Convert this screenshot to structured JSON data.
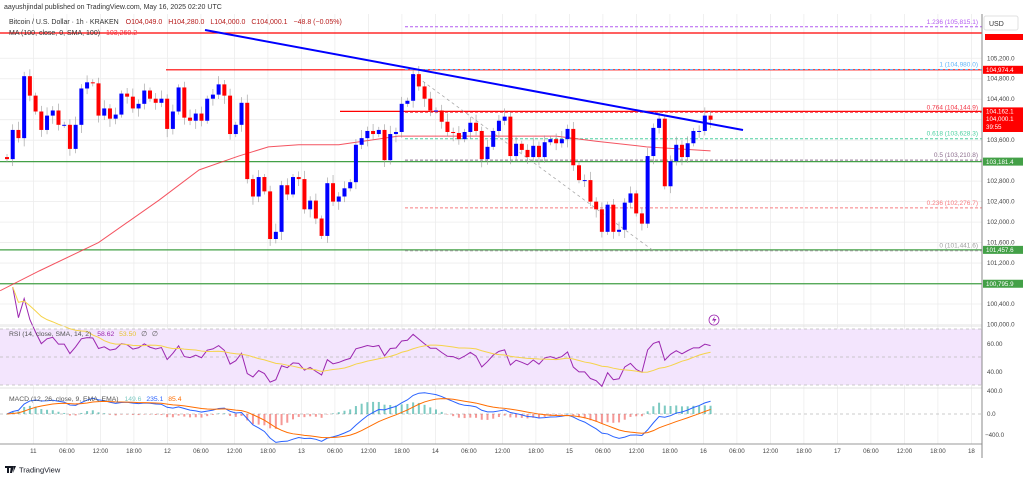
{
  "header": {
    "publisher": "aayushjindal published on TradingView.com, May 16, 2025 02:20 UTC",
    "symbol": "Bitcoin / U.S. Dollar · 1h · KRAKEN",
    "open": "O104,049.0",
    "high": "H104,280.0",
    "low": "L104,000.0",
    "close": "C104,000.1",
    "change": "−48.8 (−0.05%)",
    "ma_label": "MA (100, close, 0, SMA, 100)",
    "ma_value": "103,260.2"
  },
  "currency_button": "USD",
  "colors": {
    "up": "#0000ff",
    "down": "#ff0000",
    "ma": "#f23645",
    "trend": "#0000ff",
    "support": "#43a047",
    "rsi": "#9c27b0",
    "rsi_ma": "#f5d34a",
    "macd": "#2962ff",
    "signal": "#ff6d00",
    "hist_up": "#26a69a",
    "hist_down": "#ef5350"
  },
  "price_axis": [
    105200,
    104800,
    104400,
    103600,
    102800,
    102400,
    102000,
    101600,
    101200,
    100400,
    100000
  ],
  "price_axis_labels": [
    "105,200.0",
    "104,800.0",
    "104,400.0",
    "103,600.0",
    "102,800.0",
    "102,400.0",
    "102,000.0",
    "101,600.0",
    "101,200.0",
    "100,400.0",
    "100,000.0"
  ],
  "price_tags": [
    {
      "label": "104,974.4",
      "price": 104974.4,
      "color": "#ff0000"
    },
    {
      "label": "104,162.1",
      "price": 104162.1,
      "color": "#ff0000"
    },
    {
      "label": "103,181.4",
      "price": 103181.4,
      "color": "#43a047"
    },
    {
      "label": "101,457.6",
      "price": 101457.6,
      "color": "#43a047"
    },
    {
      "label": "100,795.9",
      "price": 100795.9,
      "color": "#43a047"
    }
  ],
  "current_price": {
    "label": "104,000.1",
    "countdown": "39:55"
  },
  "fib_levels": [
    {
      "label": "1.236 (105,815.1)",
      "price": 105815.1,
      "color": "#b45cf0"
    },
    {
      "label": "1 (104,980.0)",
      "price": 104980.0,
      "color": "#64b5f6"
    },
    {
      "label": "0.764 (104,144.9)",
      "price": 104144.9,
      "color": "#f23645"
    },
    {
      "label": "0.618 (103,628.3)",
      "price": 103628.3,
      "color": "#4dd0a1"
    },
    {
      "label": "0.5 (103,210.8)",
      "price": 103210.8,
      "color": "#8d6e8e"
    },
    {
      "label": "0.236 (102,276.7)",
      "price": 102276.7,
      "color": "#f77c80"
    },
    {
      "label": "0 (101,441.6)",
      "price": 101441.6,
      "color": "#9e9e9e"
    }
  ],
  "rsi": {
    "label": "RSI (14, close, SMA, 14, 2)",
    "value": "58.62",
    "ma_value": "53.50",
    "extra1": "∅",
    "extra2": "∅",
    "axis": [
      "60.00",
      "40.00"
    ]
  },
  "macd": {
    "label": "MACD (12, 26, close, 9, EMA, EMA)",
    "hist": "149.6",
    "macd": "235.1",
    "signal": "85.4",
    "axis": [
      "400.0",
      "0.0",
      "−400.0"
    ]
  },
  "time_axis": [
    "11",
    "06:00",
    "12:00",
    "18:00",
    "12",
    "06:00",
    "12:00",
    "18:00",
    "13",
    "06:00",
    "12:00",
    "18:00",
    "14",
    "06:00",
    "12:00",
    "18:00",
    "15",
    "06:00",
    "12:00",
    "18:00",
    "16",
    "06:00",
    "12:00",
    "18:00",
    "17",
    "06:00",
    "12:00",
    "18:00",
    "18"
  ],
  "footer": {
    "logo": "TradingView"
  },
  "chart_data": {
    "type": "candlestick",
    "title": "Bitcoin / U.S. Dollar · 1h · KRAKEN",
    "ylim": [
      99900,
      106000
    ],
    "first_open": 103270,
    "closes": [
      103230,
      103800,
      103640,
      104850,
      104470,
      104160,
      103800,
      104080,
      104180,
      103900,
      103900,
      103430,
      103900,
      104610,
      104730,
      104710,
      104080,
      104220,
      104020,
      104100,
      104510,
      104450,
      104220,
      104310,
      104570,
      104410,
      104330,
      104410,
      103820,
      104160,
      104630,
      104040,
      103980,
      104120,
      103980,
      104410,
      104490,
      104690,
      104470,
      103720,
      103900,
      104330,
      102840,
      102500,
      102880,
      102600,
      101670,
      101810,
      102720,
      102540,
      102880,
      102840,
      102250,
      102420,
      102070,
      101730,
      102760,
      102400,
      102500,
      102660,
      102780,
      103510,
      103640,
      103780,
      103720,
      103800,
      103210,
      103720,
      103760,
      104310,
      104370,
      104890,
      104650,
      104410,
      104180,
      104180,
      103960,
      103760,
      103740,
      103620,
      103760,
      103940,
      103780,
      103230,
      103470,
      103780,
      103980,
      104060,
      103290,
      103530,
      103410,
      103270,
      103490,
      103270,
      103560,
      103620,
      103540,
      103620,
      103820,
      103110,
      102820,
      102820,
      102400,
      102250,
      101810,
      102340,
      101810,
      101850,
      102380,
      102560,
      102170,
      101970,
      103290,
      103840,
      104020,
      102700,
      103190,
      103510,
      103270,
      103540,
      103780,
      103780,
      104080,
      104000
    ],
    "ma100": [
      [
        -1.2,
        100660
      ],
      [
        5.7,
        101050
      ],
      [
        16,
        101600
      ],
      [
        26.6,
        102430
      ],
      [
        33.6,
        103020
      ],
      [
        40.5,
        103290
      ],
      [
        45.7,
        103470
      ],
      [
        51,
        103510
      ],
      [
        58,
        103510
      ],
      [
        68.4,
        103680
      ],
      [
        77,
        103680
      ],
      [
        96,
        103680
      ],
      [
        103,
        103580
      ],
      [
        111.8,
        103470
      ],
      [
        123,
        103390
      ]
    ],
    "trendline": [
      [
        104950,
        36
      ],
      [
        103580,
        128
      ]
    ],
    "fib_anchor": [
      [
        104890,
        71
      ],
      [
        101441.6,
        113
      ]
    ]
  }
}
